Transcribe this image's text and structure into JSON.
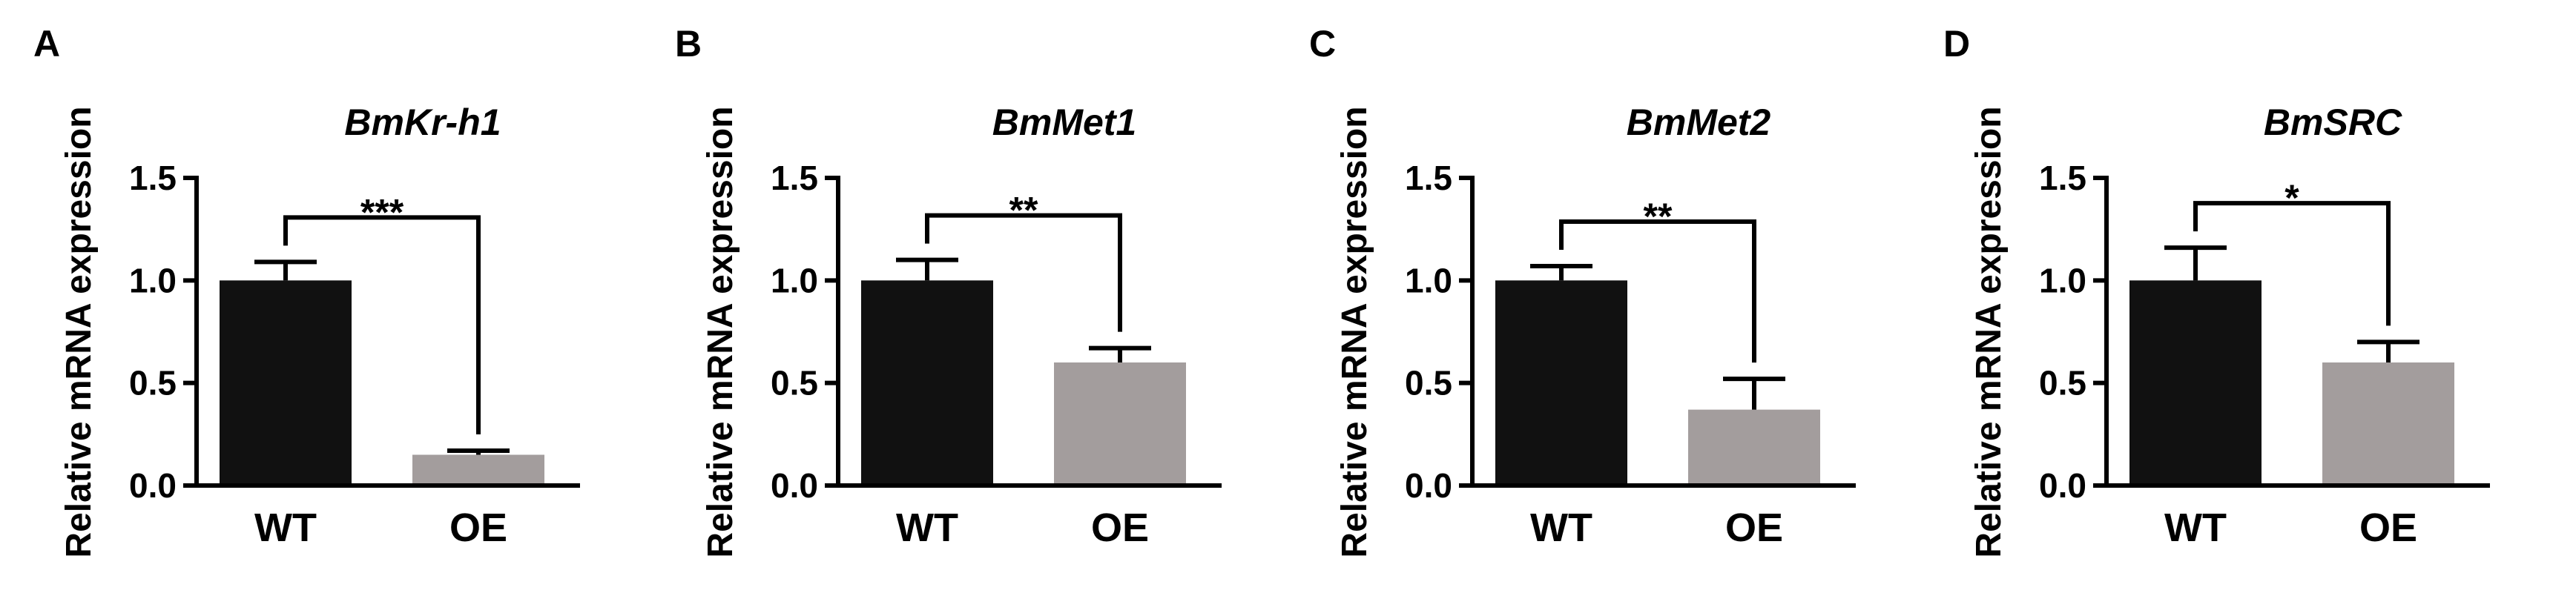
{
  "colors": {
    "wt_bar": "#111111",
    "oe_bar": "#a39d9d",
    "axis": "#000000"
  },
  "chart_data": [
    {
      "type": "bar",
      "panel": "A",
      "title": "BmKr-h1",
      "ylabel": "Relative mRNA expression",
      "xlabel": "",
      "ylim": [
        0,
        1.5
      ],
      "yticks": [
        "0.0",
        "0.5",
        "1.0",
        "1.5"
      ],
      "categories": [
        "WT",
        "OE"
      ],
      "values": [
        1.0,
        0.15
      ],
      "errors": [
        0.09,
        0.02
      ],
      "significance": "***"
    },
    {
      "type": "bar",
      "panel": "B",
      "title": "BmMet1",
      "ylabel": "Relative mRNA expression",
      "xlabel": "",
      "ylim": [
        0,
        1.5
      ],
      "yticks": [
        "0.0",
        "0.5",
        "1.0",
        "1.5"
      ],
      "categories": [
        "WT",
        "OE"
      ],
      "values": [
        1.0,
        0.6
      ],
      "errors": [
        0.1,
        0.07
      ],
      "significance": "**"
    },
    {
      "type": "bar",
      "panel": "C",
      "title": "BmMet2",
      "ylabel": "Relative mRNA expression",
      "xlabel": "",
      "ylim": [
        0,
        1.5
      ],
      "yticks": [
        "0.0",
        "0.5",
        "1.0",
        "1.5"
      ],
      "categories": [
        "WT",
        "OE"
      ],
      "values": [
        1.0,
        0.37
      ],
      "errors": [
        0.07,
        0.15
      ],
      "significance": "**"
    },
    {
      "type": "bar",
      "panel": "D",
      "title": "BmSRC",
      "ylabel": "Relative mRNA expression",
      "xlabel": "",
      "ylim": [
        0,
        1.5
      ],
      "yticks": [
        "0.0",
        "0.5",
        "1.0",
        "1.5"
      ],
      "categories": [
        "WT",
        "OE"
      ],
      "values": [
        1.0,
        0.6
      ],
      "errors": [
        0.16,
        0.1
      ],
      "significance": "*"
    }
  ]
}
